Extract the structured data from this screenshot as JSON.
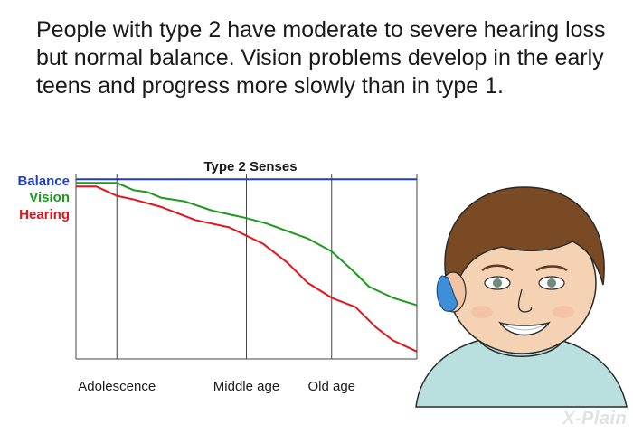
{
  "intro_text": "People with type 2 have moderate to severe hearing loss but normal balance. Vision problems develop in the early teens and progress more slowly than in type 1.",
  "brand": {
    "logo_text": "X-Plain"
  },
  "colors": {
    "balance": "#1f3fbf",
    "vision": "#1c9a1c",
    "hearing": "#e3141b",
    "gridline": "#444444"
  },
  "chart_data": {
    "type": "line",
    "title": "Type 2 Senses",
    "xlabel": "",
    "ylabel": "",
    "xlim": [
      0,
      100
    ],
    "ylim": [
      0,
      100
    ],
    "grid": false,
    "legend_position": "left",
    "x_ticks": [
      {
        "label": "Adolescence",
        "x": 12
      },
      {
        "label": "Middle age",
        "x": 50
      },
      {
        "label": "Old age",
        "x": 75
      }
    ],
    "series": [
      {
        "name": "Balance",
        "color": "#1f3fbf",
        "x": [
          0,
          100
        ],
        "y": [
          97,
          97
        ]
      },
      {
        "name": "Vision",
        "color": "#1c9a1c",
        "x": [
          0,
          12,
          17,
          21,
          25,
          32,
          40,
          50,
          56,
          62,
          68,
          75,
          81,
          86,
          93,
          100
        ],
        "y": [
          95,
          95,
          91,
          90,
          87,
          85,
          80,
          76,
          73,
          69,
          65,
          58,
          48,
          39,
          33,
          29
        ]
      },
      {
        "name": "Hearing",
        "color": "#e3141b",
        "x": [
          0,
          6,
          12,
          17,
          25,
          35,
          45,
          55,
          62,
          68,
          75,
          82,
          88,
          93,
          100
        ],
        "y": [
          93,
          93,
          88,
          86,
          82,
          75,
          71,
          62,
          52,
          41,
          33,
          28,
          17,
          10,
          4
        ]
      }
    ]
  }
}
